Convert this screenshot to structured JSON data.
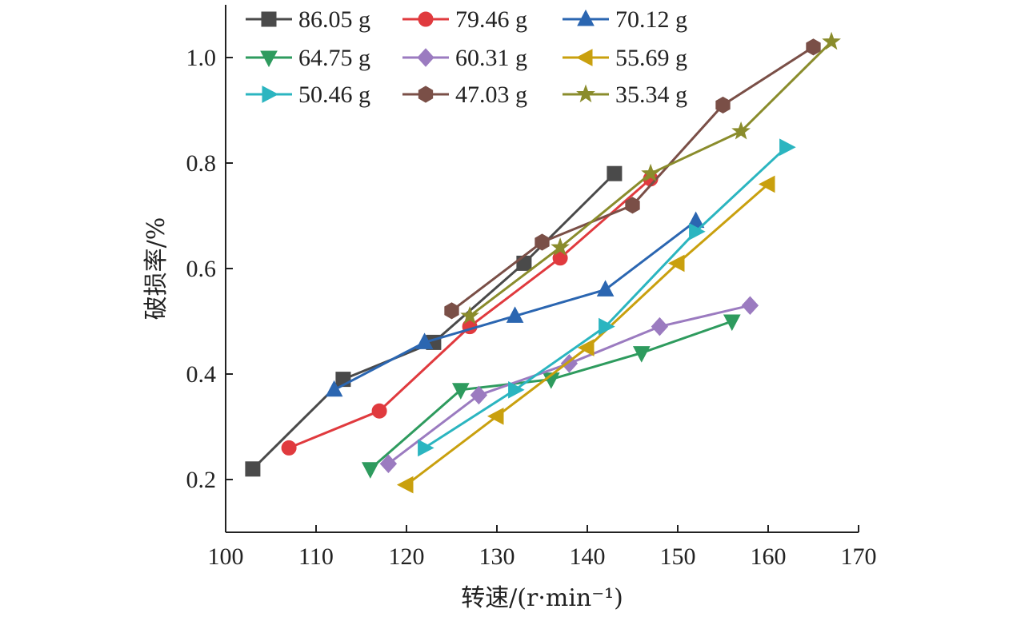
{
  "chart_data": {
    "type": "line",
    "xlabel": "转速/(r·min⁻¹)",
    "ylabel": "破损率/%",
    "xlim": [
      100,
      170
    ],
    "ylim": [
      0.1,
      1.1
    ],
    "xticks": [
      100,
      110,
      120,
      130,
      140,
      150,
      160,
      170
    ],
    "yticks": [
      0.2,
      0.4,
      0.6,
      0.8,
      1.0
    ],
    "xtick_labels": [
      "100",
      "110",
      "120",
      "130",
      "140",
      "150",
      "160",
      "170"
    ],
    "ytick_labels": [
      "0.2",
      "0.4",
      "0.6",
      "0.8",
      "1.0"
    ],
    "grid": false,
    "legend_position": "top",
    "series": [
      {
        "name": "86.05 g",
        "color": "#4a4a4a",
        "marker": "square",
        "x": [
          103,
          113,
          123,
          133,
          143
        ],
        "y": [
          0.22,
          0.39,
          0.46,
          0.61,
          0.78
        ]
      },
      {
        "name": "79.46 g",
        "color": "#e03a3e",
        "marker": "circle",
        "x": [
          107,
          117,
          127,
          137,
          147
        ],
        "y": [
          0.26,
          0.33,
          0.49,
          0.62,
          0.77
        ]
      },
      {
        "name": "70.12 g",
        "color": "#2b66b1",
        "marker": "triangle-up",
        "x": [
          112,
          122,
          132,
          142,
          152
        ],
        "y": [
          0.37,
          0.46,
          0.51,
          0.56,
          0.69
        ]
      },
      {
        "name": "64.75 g",
        "color": "#2e9b5e",
        "marker": "triangle-down",
        "x": [
          116,
          126,
          136,
          146,
          156
        ],
        "y": [
          0.22,
          0.37,
          0.39,
          0.44,
          0.5
        ]
      },
      {
        "name": "60.31 g",
        "color": "#9b7bc0",
        "marker": "diamond",
        "x": [
          118,
          128,
          138,
          148,
          158
        ],
        "y": [
          0.23,
          0.36,
          0.42,
          0.49,
          0.53
        ]
      },
      {
        "name": "55.69 g",
        "color": "#c9a00e",
        "marker": "triangle-left",
        "x": [
          120,
          130,
          140,
          150,
          160
        ],
        "y": [
          0.19,
          0.32,
          0.45,
          0.61,
          0.76
        ]
      },
      {
        "name": "50.46 g",
        "color": "#2bb5c0",
        "marker": "triangle-right",
        "x": [
          122,
          132,
          142,
          152,
          162
        ],
        "y": [
          0.26,
          0.37,
          0.49,
          0.67,
          0.83
        ]
      },
      {
        "name": "47.03 g",
        "color": "#7a4f47",
        "marker": "hexagon",
        "x": [
          125,
          135,
          145,
          155,
          165
        ],
        "y": [
          0.52,
          0.65,
          0.72,
          0.91,
          1.02
        ]
      },
      {
        "name": "35.34 g",
        "color": "#8a8c2c",
        "marker": "star",
        "x": [
          127,
          137,
          147,
          157,
          167
        ],
        "y": [
          0.51,
          0.64,
          0.78,
          0.86,
          1.03
        ]
      }
    ]
  }
}
